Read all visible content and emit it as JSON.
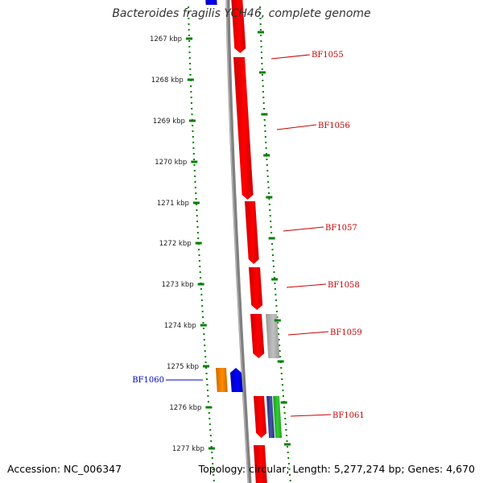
{
  "title": "Bacteroides fragilis YCH46, complete genome",
  "footer": {
    "accession": "Accession: NC_006347",
    "summary": "Topology: circular; Length: 5,277,274 bp; Genes: 4,670"
  },
  "colors": {
    "forward_gene": "#ff0000",
    "reverse_gene": "#0000ff",
    "gray_gene": "#c0c0c0",
    "orange_gene": "#ff8c00",
    "green_gene": "#33cc33",
    "label_forward": "#cc0000",
    "label_reverse": "#0000cc",
    "scale_tick": "#008000",
    "backbone": "#808080"
  },
  "scale": {
    "labels": [
      "1267 kbp",
      "1268 kbp",
      "1269 kbp",
      "1270 kbp",
      "1271 kbp",
      "1272 kbp",
      "1273 kbp",
      "1274 kbp",
      "1275 kbp",
      "1276 kbp",
      "1277 kbp"
    ]
  },
  "genes": [
    {
      "label": "BF1055",
      "strand": "forward"
    },
    {
      "label": "BF1056",
      "strand": "forward"
    },
    {
      "label": "BF1057",
      "strand": "forward"
    },
    {
      "label": "BF1058",
      "strand": "forward"
    },
    {
      "label": "BF1059",
      "strand": "forward"
    },
    {
      "label": "BF1060",
      "strand": "reverse"
    },
    {
      "label": "BF1061",
      "strand": "forward"
    }
  ]
}
